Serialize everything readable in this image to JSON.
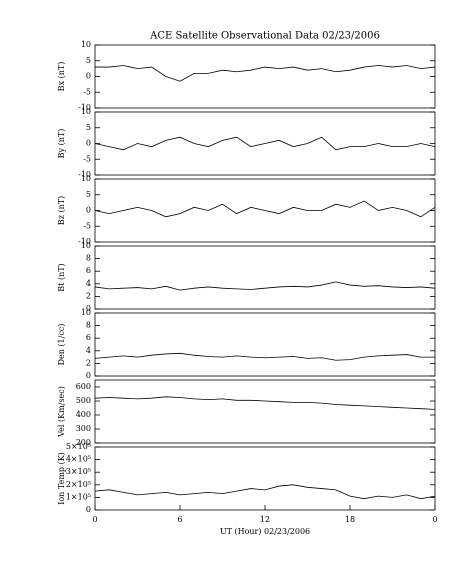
{
  "chart_data": [
    {
      "type": "line",
      "title": "ACE Satellite Observational Data   02/23/2006",
      "ylabel": "Bx (nT)",
      "color": "#000000",
      "x": [
        0,
        1,
        2,
        3,
        4,
        5,
        6,
        7,
        8,
        9,
        10,
        11,
        12,
        13,
        14,
        15,
        16,
        17,
        18,
        19,
        20,
        21,
        22,
        23,
        24
      ],
      "values": [
        3,
        3,
        3.5,
        2.5,
        3,
        0,
        -1.5,
        1,
        1,
        2,
        1.5,
        2,
        3,
        2.5,
        3,
        2,
        2.5,
        1.5,
        2,
        3,
        3.5,
        3,
        3.5,
        2.5,
        3
      ],
      "xlim": [
        0,
        24
      ],
      "ylim": [
        -10,
        10
      ],
      "yticks": [
        10,
        5,
        0,
        -5,
        -10
      ]
    },
    {
      "type": "line",
      "ylabel": "By (nT)",
      "color": "#000000",
      "x": [
        0,
        1,
        2,
        3,
        4,
        5,
        6,
        7,
        8,
        9,
        10,
        11,
        12,
        13,
        14,
        15,
        16,
        17,
        18,
        19,
        20,
        21,
        22,
        23,
        24
      ],
      "values": [
        0,
        -1,
        -2,
        0,
        -1,
        1,
        2,
        0,
        -1,
        1,
        2,
        -1,
        0,
        1,
        -1,
        0,
        2,
        -2,
        -1,
        -1,
        0,
        -1,
        -1,
        0,
        -1
      ],
      "xlim": [
        0,
        24
      ],
      "ylim": [
        -10,
        10
      ],
      "yticks": [
        10,
        5,
        0,
        -5,
        -10
      ]
    },
    {
      "type": "line",
      "ylabel": "Bz (nT)",
      "color": "#000000",
      "x": [
        0,
        1,
        2,
        3,
        4,
        5,
        6,
        7,
        8,
        9,
        10,
        11,
        12,
        13,
        14,
        15,
        16,
        17,
        18,
        19,
        20,
        21,
        22,
        23,
        24
      ],
      "values": [
        0,
        -1,
        0,
        1,
        0,
        -2,
        -1,
        1,
        0,
        2,
        -1,
        1,
        0,
        -1,
        1,
        0,
        0,
        2,
        1,
        3,
        0,
        1,
        0,
        -2,
        1
      ],
      "xlim": [
        0,
        24
      ],
      "ylim": [
        -10,
        10
      ],
      "yticks": [
        10,
        5,
        0,
        -5,
        -10
      ]
    },
    {
      "type": "line",
      "ylabel": "Bt (nT)",
      "color": "#000000",
      "x": [
        0,
        1,
        2,
        3,
        4,
        5,
        6,
        7,
        8,
        9,
        10,
        11,
        12,
        13,
        14,
        15,
        16,
        17,
        18,
        19,
        20,
        21,
        22,
        23,
        24
      ],
      "values": [
        3.5,
        3.2,
        3.3,
        3.4,
        3.2,
        3.6,
        3.0,
        3.3,
        3.5,
        3.3,
        3.2,
        3.1,
        3.3,
        3.5,
        3.6,
        3.5,
        3.8,
        4.3,
        3.8,
        3.6,
        3.7,
        3.5,
        3.4,
        3.5,
        3.3
      ],
      "xlim": [
        0,
        24
      ],
      "ylim": [
        0,
        10
      ],
      "yticks": [
        10,
        8,
        6,
        4,
        2,
        0
      ]
    },
    {
      "type": "line",
      "ylabel": "Den (1/cc)",
      "color": "#000000",
      "x": [
        0,
        1,
        2,
        3,
        4,
        5,
        6,
        7,
        8,
        9,
        10,
        11,
        12,
        13,
        14,
        15,
        16,
        17,
        18,
        19,
        20,
        21,
        22,
        23,
        24
      ],
      "values": [
        2.8,
        3,
        3.2,
        3,
        3.3,
        3.5,
        3.6,
        3.3,
        3.1,
        3,
        3.2,
        3,
        2.9,
        3,
        3.1,
        2.8,
        2.9,
        2.5,
        2.6,
        3,
        3.2,
        3.3,
        3.4,
        3,
        3
      ],
      "xlim": [
        0,
        24
      ],
      "ylim": [
        0,
        10
      ],
      "yticks": [
        10,
        8,
        6,
        4,
        2,
        0
      ]
    },
    {
      "type": "line",
      "ylabel": "Vel (Km/sec)",
      "color": "#000000",
      "x": [
        0,
        1,
        2,
        3,
        4,
        5,
        6,
        7,
        8,
        9,
        10,
        11,
        12,
        13,
        14,
        15,
        16,
        17,
        18,
        19,
        20,
        21,
        22,
        23,
        24
      ],
      "values": [
        520,
        525,
        520,
        515,
        520,
        530,
        525,
        515,
        510,
        515,
        505,
        505,
        500,
        495,
        490,
        490,
        485,
        475,
        470,
        465,
        460,
        455,
        450,
        445,
        440
      ],
      "xlim": [
        0,
        24
      ],
      "ylim": [
        200,
        650
      ],
      "yticks": [
        600,
        500,
        400,
        300,
        200
      ]
    },
    {
      "type": "line",
      "ylabel": "Ion Temp (K)",
      "color": "#000000",
      "x": [
        0,
        1,
        2,
        3,
        4,
        5,
        6,
        7,
        8,
        9,
        10,
        11,
        12,
        13,
        14,
        15,
        16,
        17,
        18,
        19,
        20,
        21,
        22,
        23,
        24
      ],
      "values": [
        150000,
        160000,
        140000,
        120000,
        130000,
        140000,
        120000,
        130000,
        140000,
        130000,
        150000,
        170000,
        160000,
        190000,
        200000,
        180000,
        170000,
        160000,
        110000,
        90000,
        110000,
        100000,
        120000,
        90000,
        110000
      ],
      "xlim": [
        0,
        24
      ],
      "ylim": [
        0,
        500000
      ],
      "yticks": [
        {
          "value": 500000,
          "label": "5×10⁵"
        },
        {
          "value": 400000,
          "label": "4×10⁵"
        },
        {
          "value": 300000,
          "label": "3×10⁵"
        },
        {
          "value": 200000,
          "label": "2×10⁵"
        },
        {
          "value": 100000,
          "label": "1×10⁵"
        },
        0
      ],
      "xlabel": "UT (Hour)   02/23/2006",
      "xticks": [
        0,
        6,
        12,
        18,
        {
          "value": 24,
          "label": "0"
        }
      ]
    }
  ]
}
